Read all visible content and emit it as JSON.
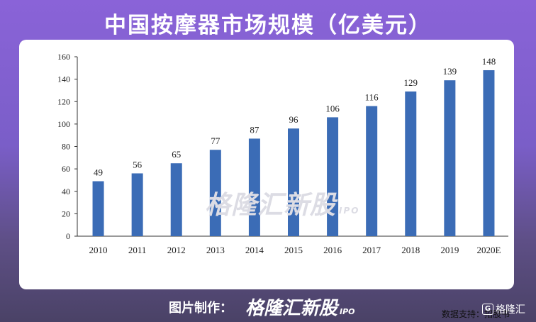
{
  "title": "中国按摩器市场规模（亿美元）",
  "source_text": "数据支持：招股书",
  "footer": {
    "label": "图片制作：",
    "logo_text": "格隆汇新股",
    "logo_sub": "IPO"
  },
  "corner_logo": {
    "glyph": "G",
    "text": "格隆汇"
  },
  "watermark": {
    "text": "格隆汇新股",
    "sub": "IPO"
  },
  "colors": {
    "bar": "#3b6cb6",
    "axis": "#333333"
  },
  "chart_data": {
    "type": "bar",
    "title": "中国按摩器市场规模（亿美元）",
    "categories": [
      "2010",
      "2011",
      "2012",
      "2013",
      "2014",
      "2015",
      "2016",
      "2017",
      "2018",
      "2019",
      "2020E"
    ],
    "values": [
      49,
      56,
      65,
      77,
      87,
      96,
      106,
      116,
      129,
      139,
      148
    ],
    "ylim": [
      0,
      160
    ],
    "yticks": [
      0,
      20,
      40,
      60,
      80,
      100,
      120,
      140,
      160
    ],
    "grid": false,
    "data_labels": true
  }
}
